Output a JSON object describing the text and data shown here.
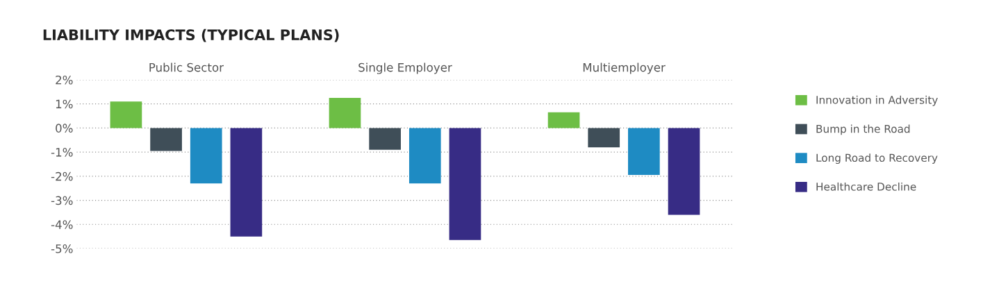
{
  "chart_data": {
    "type": "bar",
    "title": "LIABILITY IMPACTS (TYPICAL PLANS)",
    "categories": [
      "Public Sector",
      "Single Employer",
      "Multiemployer"
    ],
    "series": [
      {
        "name": "Innovation in Adversity",
        "color": "#6dbe45",
        "values": [
          1.1,
          1.25,
          0.65
        ]
      },
      {
        "name": "Bump in the Road",
        "color": "#3f4e58",
        "values": [
          -0.95,
          -0.9,
          -0.8
        ]
      },
      {
        "name": "Long Road to Recovery",
        "color": "#1e8bc3",
        "values": [
          -2.3,
          -2.3,
          -1.95
        ]
      },
      {
        "name": "Healthcare Decline",
        "color": "#372c85",
        "values": [
          -4.5,
          -4.65,
          -3.6
        ]
      }
    ],
    "ylim": [
      -5,
      2
    ],
    "yticks": [
      {
        "value": 2,
        "label": "2%"
      },
      {
        "value": 1,
        "label": "1%"
      },
      {
        "value": 0,
        "label": "0%"
      },
      {
        "value": -1,
        "label": "-1%"
      },
      {
        "value": -2,
        "label": "-2%"
      },
      {
        "value": -3,
        "label": "-3%"
      },
      {
        "value": -4,
        "label": "-4%"
      },
      {
        "value": -5,
        "label": "-5%"
      }
    ],
    "grid": "y",
    "legend": "right"
  }
}
